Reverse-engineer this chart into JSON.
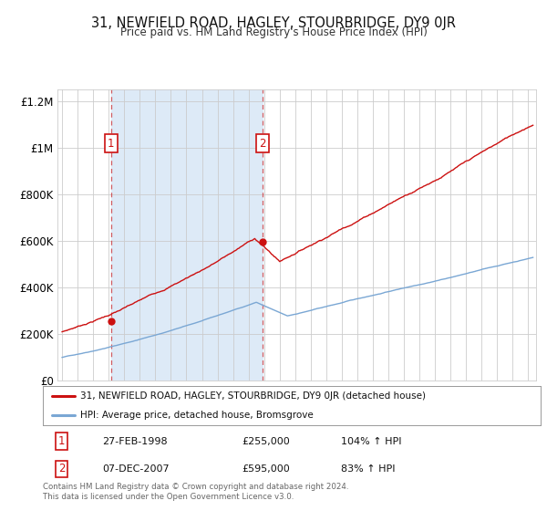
{
  "title": "31, NEWFIELD ROAD, HAGLEY, STOURBRIDGE, DY9 0JR",
  "subtitle": "Price paid vs. HM Land Registry's House Price Index (HPI)",
  "background_color": "#ffffff",
  "plot_bg_color": "#ffffff",
  "shaded_region_color": "#ddeaf7",
  "grid_color": "#cccccc",
  "hpi_line_color": "#7aa7d4",
  "price_line_color": "#cc1111",
  "annotation1_date": 1998.15,
  "annotation1_value": 255000,
  "annotation1_label": "1",
  "annotation2_date": 2007.92,
  "annotation2_value": 595000,
  "annotation2_label": "2",
  "legend_line1": "31, NEWFIELD ROAD, HAGLEY, STOURBRIDGE, DY9 0JR (detached house)",
  "legend_line2": "HPI: Average price, detached house, Bromsgrove",
  "table_row1": [
    "1",
    "27-FEB-1998",
    "£255,000",
    "104% ↑ HPI"
  ],
  "table_row2": [
    "2",
    "07-DEC-2007",
    "£595,000",
    "83% ↑ HPI"
  ],
  "footnote1": "Contains HM Land Registry data © Crown copyright and database right 2024.",
  "footnote2": "This data is licensed under the Open Government Licence v3.0.",
  "ylim": [
    0,
    1250000
  ],
  "xlim_start": 1994.7,
  "xlim_end": 2025.5,
  "yticks": [
    0,
    200000,
    400000,
    600000,
    800000,
    1000000,
    1200000
  ],
  "ytick_labels": [
    "£0",
    "£200K",
    "£400K",
    "£600K",
    "£800K",
    "£1M",
    "£1.2M"
  ],
  "xticks": [
    1995,
    1996,
    1997,
    1998,
    1999,
    2000,
    2001,
    2002,
    2003,
    2004,
    2005,
    2006,
    2007,
    2008,
    2009,
    2010,
    2011,
    2012,
    2013,
    2014,
    2015,
    2016,
    2017,
    2018,
    2019,
    2020,
    2021,
    2022,
    2023,
    2024,
    2025
  ]
}
